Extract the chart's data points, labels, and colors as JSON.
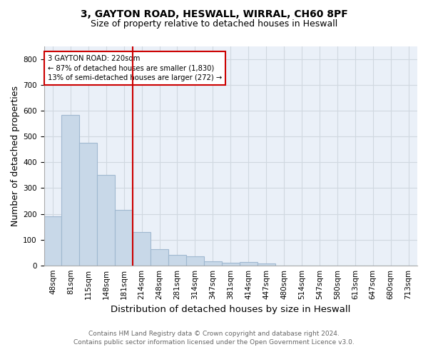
{
  "title_line1": "3, GAYTON ROAD, HESWALL, WIRRAL, CH60 8PF",
  "title_line2": "Size of property relative to detached houses in Heswall",
  "xlabel": "Distribution of detached houses by size in Heswall",
  "ylabel": "Number of detached properties",
  "footnote1": "Contains HM Land Registry data © Crown copyright and database right 2024.",
  "footnote2": "Contains public sector information licensed under the Open Government Licence v3.0.",
  "bar_labels": [
    "48sqm",
    "81sqm",
    "115sqm",
    "148sqm",
    "181sqm",
    "214sqm",
    "248sqm",
    "281sqm",
    "314sqm",
    "347sqm",
    "381sqm",
    "414sqm",
    "447sqm",
    "480sqm",
    "514sqm",
    "547sqm",
    "580sqm",
    "613sqm",
    "647sqm",
    "680sqm",
    "713sqm"
  ],
  "bar_heights": [
    190,
    585,
    475,
    350,
    215,
    130,
    62,
    42,
    35,
    17,
    10,
    12,
    8,
    0,
    0,
    0,
    0,
    0,
    0,
    0,
    0
  ],
  "bar_color": "#c8d8e8",
  "bar_edge_color": "#a0b8d0",
  "red_line_x": 4.5,
  "red_line_color": "#cc0000",
  "annotation_text": "3 GAYTON ROAD: 220sqm\n← 87% of detached houses are smaller (1,830)\n13% of semi-detached houses are larger (272) →",
  "annotation_box_color": "#ffffff",
  "annotation_box_edge": "#cc0000",
  "ylim": [
    0,
    850
  ],
  "yticks": [
    0,
    100,
    200,
    300,
    400,
    500,
    600,
    700,
    800
  ],
  "grid_color": "#d0d8e0",
  "background_color": "#eaf0f8",
  "title_fontsize": 10,
  "subtitle_fontsize": 9,
  "axis_label_fontsize": 9,
  "tick_fontsize": 7.5,
  "footnote_fontsize": 6.5
}
